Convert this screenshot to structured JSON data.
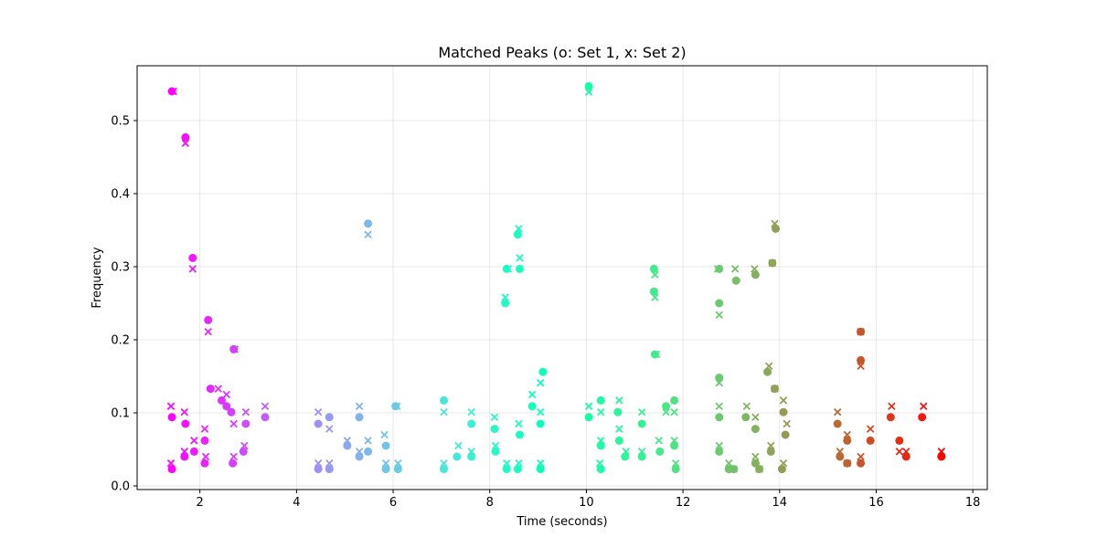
{
  "chart_data": {
    "type": "scatter",
    "title": "Matched Peaks (o: Set 1, x: Set 2)",
    "xlabel": "Time (seconds)",
    "ylabel": "Frequency",
    "xlim": [
      0.7,
      18.3
    ],
    "ylim": [
      -0.005,
      0.575
    ],
    "xticks": [
      2,
      4,
      6,
      8,
      10,
      12,
      14,
      16,
      18
    ],
    "yticks": [
      0.0,
      0.1,
      0.2,
      0.3,
      0.4,
      0.5
    ],
    "xtick_labels": [
      "2",
      "4",
      "6",
      "8",
      "10",
      "12",
      "14",
      "16",
      "18"
    ],
    "ytick_labels": [
      "0.0",
      "0.1",
      "0.2",
      "0.3",
      "0.4",
      "0.5"
    ],
    "grid": true,
    "colormap": "rainbow",
    "series": [
      {
        "marker": "o",
        "points": [
          [
            1.42,
            0.54
          ],
          [
            1.7,
            0.477
          ],
          [
            1.85,
            0.312
          ],
          [
            2.17,
            0.227
          ],
          [
            2.7,
            0.187
          ],
          [
            1.42,
            0.094
          ],
          [
            1.7,
            0.085
          ],
          [
            1.42,
            0.023
          ],
          [
            1.68,
            0.04
          ],
          [
            1.88,
            0.047
          ],
          [
            2.1,
            0.062
          ],
          [
            2.22,
            0.133
          ],
          [
            2.45,
            0.117
          ],
          [
            2.55,
            0.109
          ],
          [
            2.65,
            0.101
          ],
          [
            2.1,
            0.031
          ],
          [
            2.68,
            0.031
          ],
          [
            2.9,
            0.047
          ],
          [
            2.95,
            0.085
          ],
          [
            3.35,
            0.094
          ],
          [
            4.45,
            0.085
          ],
          [
            4.68,
            0.094
          ],
          [
            4.45,
            0.023
          ],
          [
            4.68,
            0.023
          ],
          [
            5.05,
            0.055
          ],
          [
            5.3,
            0.094
          ],
          [
            5.3,
            0.04
          ],
          [
            5.48,
            0.047
          ],
          [
            5.48,
            0.359
          ],
          [
            5.85,
            0.055
          ],
          [
            5.85,
            0.023
          ],
          [
            6.05,
            0.109
          ],
          [
            6.1,
            0.023
          ],
          [
            7.05,
            0.117
          ],
          [
            7.05,
            0.023
          ],
          [
            7.32,
            0.04
          ],
          [
            7.62,
            0.085
          ],
          [
            7.62,
            0.04
          ],
          [
            8.1,
            0.078
          ],
          [
            8.12,
            0.047
          ],
          [
            8.32,
            0.25
          ],
          [
            8.35,
            0.297
          ],
          [
            8.35,
            0.023
          ],
          [
            8.58,
            0.344
          ],
          [
            8.62,
            0.297
          ],
          [
            8.58,
            0.023
          ],
          [
            8.62,
            0.07
          ],
          [
            8.88,
            0.109
          ],
          [
            9.05,
            0.085
          ],
          [
            9.1,
            0.156
          ],
          [
            9.05,
            0.023
          ],
          [
            10.05,
            0.547
          ],
          [
            10.05,
            0.094
          ],
          [
            10.3,
            0.117
          ],
          [
            10.3,
            0.055
          ],
          [
            10.3,
            0.023
          ],
          [
            10.65,
            0.101
          ],
          [
            10.68,
            0.062
          ],
          [
            10.8,
            0.04
          ],
          [
            11.15,
            0.085
          ],
          [
            11.15,
            0.04
          ],
          [
            11.4,
            0.297
          ],
          [
            11.4,
            0.266
          ],
          [
            11.42,
            0.18
          ],
          [
            11.52,
            0.047
          ],
          [
            11.65,
            0.109
          ],
          [
            11.82,
            0.117
          ],
          [
            11.82,
            0.055
          ],
          [
            11.85,
            0.023
          ],
          [
            12.75,
            0.297
          ],
          [
            12.75,
            0.25
          ],
          [
            12.75,
            0.148
          ],
          [
            12.75,
            0.094
          ],
          [
            12.75,
            0.047
          ],
          [
            12.95,
            0.023
          ],
          [
            13.05,
            0.023
          ],
          [
            13.1,
            0.281
          ],
          [
            13.3,
            0.094
          ],
          [
            13.5,
            0.289
          ],
          [
            13.5,
            0.078
          ],
          [
            13.5,
            0.031
          ],
          [
            13.58,
            0.023
          ],
          [
            13.75,
            0.156
          ],
          [
            13.85,
            0.305
          ],
          [
            13.9,
            0.133
          ],
          [
            13.82,
            0.047
          ],
          [
            13.92,
            0.352
          ],
          [
            14.08,
            0.101
          ],
          [
            14.12,
            0.07
          ],
          [
            14.05,
            0.023
          ],
          [
            15.2,
            0.085
          ],
          [
            15.25,
            0.04
          ],
          [
            15.4,
            0.062
          ],
          [
            15.4,
            0.031
          ],
          [
            15.68,
            0.211
          ],
          [
            15.68,
            0.172
          ],
          [
            15.68,
            0.031
          ],
          [
            15.88,
            0.062
          ],
          [
            16.3,
            0.094
          ],
          [
            16.48,
            0.062
          ],
          [
            16.62,
            0.04
          ],
          [
            16.95,
            0.094
          ],
          [
            17.35,
            0.04
          ]
        ]
      },
      {
        "marker": "x",
        "points": [
          [
            1.45,
            0.54
          ],
          [
            1.7,
            0.469
          ],
          [
            1.85,
            0.297
          ],
          [
            2.17,
            0.211
          ],
          [
            2.72,
            0.187
          ],
          [
            1.4,
            0.109
          ],
          [
            1.68,
            0.101
          ],
          [
            1.88,
            0.062
          ],
          [
            1.4,
            0.031
          ],
          [
            1.68,
            0.047
          ],
          [
            2.1,
            0.078
          ],
          [
            2.12,
            0.04
          ],
          [
            2.38,
            0.133
          ],
          [
            2.55,
            0.125
          ],
          [
            2.7,
            0.085
          ],
          [
            2.7,
            0.04
          ],
          [
            2.92,
            0.055
          ],
          [
            2.95,
            0.101
          ],
          [
            3.35,
            0.109
          ],
          [
            4.45,
            0.101
          ],
          [
            4.45,
            0.031
          ],
          [
            4.68,
            0.078
          ],
          [
            4.68,
            0.031
          ],
          [
            5.05,
            0.062
          ],
          [
            5.3,
            0.109
          ],
          [
            5.3,
            0.047
          ],
          [
            5.48,
            0.062
          ],
          [
            5.48,
            0.344
          ],
          [
            5.82,
            0.07
          ],
          [
            5.85,
            0.031
          ],
          [
            6.08,
            0.109
          ],
          [
            6.1,
            0.031
          ],
          [
            7.05,
            0.101
          ],
          [
            7.05,
            0.031
          ],
          [
            7.35,
            0.055
          ],
          [
            7.62,
            0.101
          ],
          [
            7.62,
            0.047
          ],
          [
            8.1,
            0.094
          ],
          [
            8.12,
            0.055
          ],
          [
            8.32,
            0.258
          ],
          [
            8.38,
            0.297
          ],
          [
            8.35,
            0.031
          ],
          [
            8.6,
            0.352
          ],
          [
            8.62,
            0.312
          ],
          [
            8.6,
            0.031
          ],
          [
            8.6,
            0.085
          ],
          [
            8.88,
            0.125
          ],
          [
            9.05,
            0.141
          ],
          [
            9.05,
            0.101
          ],
          [
            9.05,
            0.031
          ],
          [
            10.05,
            0.539
          ],
          [
            10.05,
            0.109
          ],
          [
            10.3,
            0.101
          ],
          [
            10.3,
            0.062
          ],
          [
            10.28,
            0.031
          ],
          [
            10.68,
            0.117
          ],
          [
            10.68,
            0.078
          ],
          [
            10.82,
            0.047
          ],
          [
            11.15,
            0.101
          ],
          [
            11.15,
            0.047
          ],
          [
            11.42,
            0.289
          ],
          [
            11.42,
            0.258
          ],
          [
            11.45,
            0.18
          ],
          [
            11.5,
            0.062
          ],
          [
            11.65,
            0.101
          ],
          [
            11.82,
            0.101
          ],
          [
            11.82,
            0.062
          ],
          [
            11.85,
            0.031
          ],
          [
            12.72,
            0.297
          ],
          [
            12.75,
            0.234
          ],
          [
            12.75,
            0.141
          ],
          [
            12.75,
            0.109
          ],
          [
            12.75,
            0.055
          ],
          [
            12.95,
            0.031
          ],
          [
            13.05,
            0.023
          ],
          [
            13.08,
            0.297
          ],
          [
            13.32,
            0.109
          ],
          [
            13.48,
            0.297
          ],
          [
            13.5,
            0.094
          ],
          [
            13.5,
            0.04
          ],
          [
            13.58,
            0.023
          ],
          [
            13.78,
            0.164
          ],
          [
            13.85,
            0.305
          ],
          [
            13.9,
            0.133
          ],
          [
            13.82,
            0.055
          ],
          [
            13.9,
            0.359
          ],
          [
            14.08,
            0.117
          ],
          [
            14.15,
            0.085
          ],
          [
            14.08,
            0.031
          ],
          [
            15.2,
            0.101
          ],
          [
            15.25,
            0.047
          ],
          [
            15.4,
            0.07
          ],
          [
            15.4,
            0.031
          ],
          [
            15.68,
            0.211
          ],
          [
            15.68,
            0.164
          ],
          [
            15.68,
            0.04
          ],
          [
            15.88,
            0.078
          ],
          [
            16.32,
            0.109
          ],
          [
            16.48,
            0.047
          ],
          [
            16.62,
            0.047
          ],
          [
            16.98,
            0.109
          ],
          [
            17.35,
            0.047
          ]
        ]
      }
    ]
  }
}
